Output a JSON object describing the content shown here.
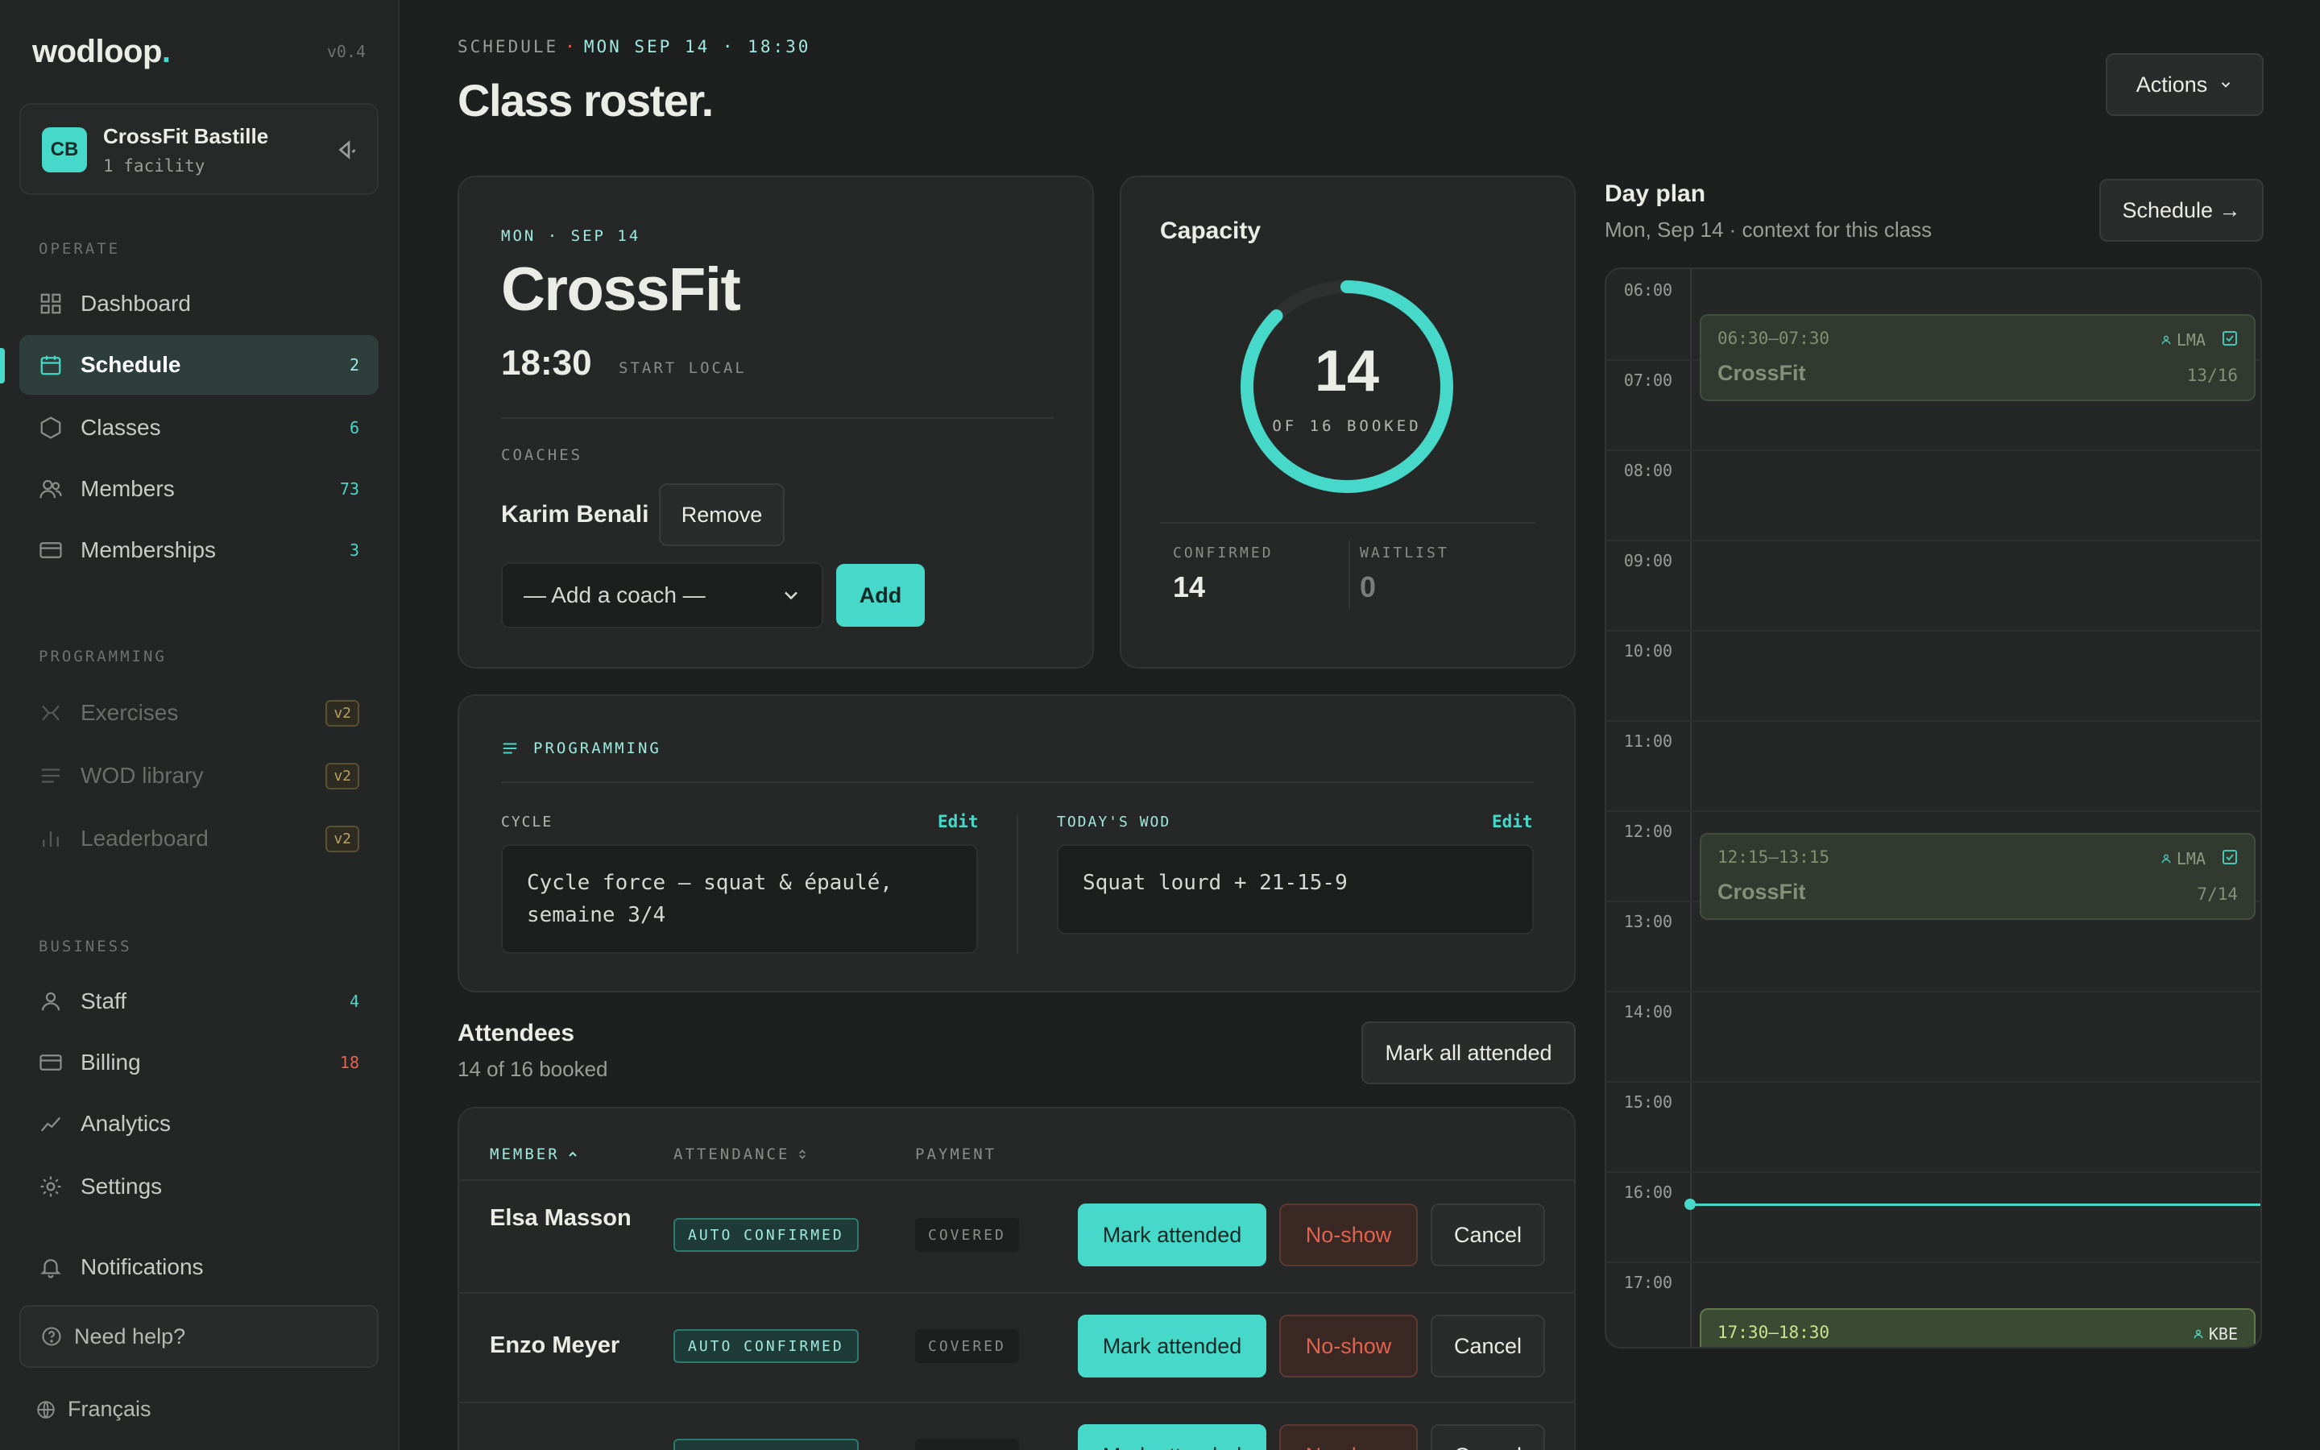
{
  "brand": {
    "name": "wodloop",
    "dot": ".",
    "version": "v0.4"
  },
  "facility": {
    "initials": "CB",
    "name": "CrossFit Bastille",
    "sub": "1 facility"
  },
  "sidebar": {
    "sections": {
      "operate": "OPERATE",
      "programming": "PROGRAMMING",
      "business": "BUSINESS"
    },
    "operate": [
      {
        "label": "Dashboard",
        "icon": "dashboard-icon",
        "count": ""
      },
      {
        "label": "Schedule",
        "icon": "calendar-icon",
        "count": "2"
      },
      {
        "label": "Classes",
        "icon": "hexagon-icon",
        "count": "6"
      },
      {
        "label": "Members",
        "icon": "users-icon",
        "count": "73"
      },
      {
        "label": "Memberships",
        "icon": "card-icon",
        "count": "3"
      }
    ],
    "programming": [
      {
        "label": "Exercises",
        "icon": "dumbbell-icon",
        "badge": "v2"
      },
      {
        "label": "WOD library",
        "icon": "list-icon",
        "badge": "v2"
      },
      {
        "label": "Leaderboard",
        "icon": "bar-chart-icon",
        "badge": "v2"
      }
    ],
    "business": [
      {
        "label": "Staff",
        "icon": "person-icon",
        "count": "4"
      },
      {
        "label": "Billing",
        "icon": "billing-icon",
        "count": "18"
      },
      {
        "label": "Analytics",
        "icon": "trend-icon",
        "count": ""
      },
      {
        "label": "Settings",
        "icon": "gear-icon",
        "count": ""
      }
    ],
    "notifications": "Notifications",
    "help": "Need help?",
    "language": "Français"
  },
  "header": {
    "crumb_section": "SCHEDULE",
    "crumb_sep": "·",
    "crumb_date": "MON SEP 14 · 18:30",
    "title": "Class roster.",
    "actions": "Actions"
  },
  "class_card": {
    "date": "MON · SEP 14",
    "name": "CrossFit",
    "time": "18:30",
    "time_sub": "START LOCAL",
    "coaches_label": "COACHES",
    "coach": "Karim Benali",
    "remove": "Remove",
    "add_coach_placeholder": "— Add a coach —",
    "add": "Add"
  },
  "capacity": {
    "title": "Capacity",
    "booked": "14",
    "booked_sub": "OF 16 BOOKED",
    "fill": 0.875,
    "confirmed_label": "CONFIRMED",
    "confirmed": "14",
    "waitlist_label": "WAITLIST",
    "waitlist": "0"
  },
  "programming": {
    "label": "PROGRAMMING",
    "cycle_label": "CYCLE",
    "cycle_edit": "Edit",
    "cycle_text": "Cycle force — squat & épaulé, semaine 3/4",
    "wod_label": "TODAY'S WOD",
    "wod_edit": "Edit",
    "wod_text": "Squat lourd + 21-15-9"
  },
  "attendees": {
    "title": "Attendees",
    "sub": "14 of 16 booked",
    "mark_all": "Mark all attended",
    "columns": {
      "member": "MEMBER",
      "attendance": "ATTENDANCE",
      "payment": "PAYMENT"
    },
    "rows": [
      {
        "member": "Elsa Masson",
        "attendance": "AUTO CONFIRMED",
        "payment": "COVERED"
      },
      {
        "member": "Enzo Meyer",
        "attendance": "AUTO CONFIRMED",
        "payment": "COVERED"
      }
    ],
    "actions": {
      "attended": "Mark attended",
      "noshow": "No-show",
      "cancel": "Cancel"
    }
  },
  "day_plan": {
    "title": "Day plan",
    "sub": "Mon, Sep 14 · context for this class",
    "schedule_link": "Schedule →",
    "hours": [
      "06:00",
      "07:00",
      "08:00",
      "09:00",
      "10:00",
      "11:00",
      "12:00",
      "13:00",
      "14:00",
      "15:00",
      "16:00",
      "17:00"
    ],
    "events": [
      {
        "time": "06:30–07:30",
        "name": "CrossFit",
        "coach": "LMA",
        "count": "13/16"
      },
      {
        "time": "12:15–13:15",
        "name": "CrossFit",
        "coach": "LMA",
        "count": "7/14"
      },
      {
        "time": "17:30–18:30",
        "name": "",
        "coach": "KBE",
        "count": ""
      }
    ]
  },
  "colors": {
    "accent": "#46d9c9",
    "danger": "#e0644e",
    "warning": "#b9a266",
    "bg": "#1e1f1f"
  }
}
